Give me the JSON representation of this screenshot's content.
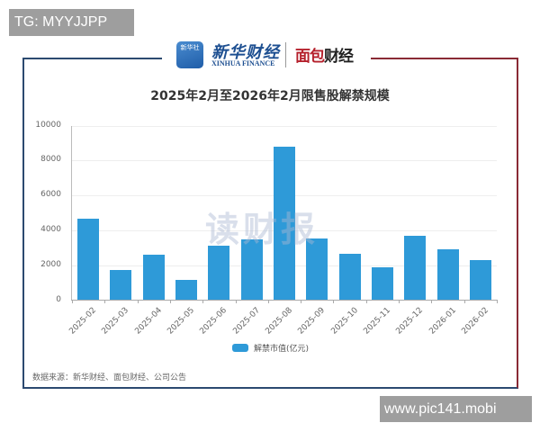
{
  "overlay": {
    "top_tag": "TG: MYYJJPP",
    "bottom_url": "www.pic141.mobi"
  },
  "branding": {
    "xinhua_icon_text": "新华社",
    "xinhua_name": "新华财经",
    "xinhua_sub": "XINHUA FINANCE",
    "mianbao_name_part1": "面包",
    "mianbao_name_part2": "财经",
    "watermark": "读财报"
  },
  "footer": {
    "source": "数据来源：新华财经、面包财经、公司公告"
  },
  "colors": {
    "bar": "#2e9ad8",
    "frame_left": "#2c4a70",
    "frame_right": "#8a2a35"
  },
  "chart_data": {
    "type": "bar",
    "title": "2025年2月至2026年2月限售股解禁规模",
    "xlabel": "",
    "ylabel": "",
    "categories": [
      "2025-02",
      "2025-03",
      "2025-04",
      "2025-05",
      "2025-06",
      "2025-07",
      "2025-08",
      "2025-09",
      "2025-10",
      "2025-11",
      "2025-12",
      "2026-01",
      "2026-02"
    ],
    "series": [
      {
        "name": "解禁市值(亿元)",
        "values": [
          4670,
          1750,
          2610,
          1180,
          3140,
          3480,
          8770,
          3530,
          2630,
          1870,
          3670,
          2920,
          2300
        ]
      }
    ],
    "yticks": [
      "0",
      "2000",
      "4000",
      "6000",
      "8000",
      "10000"
    ],
    "ylim": [
      0,
      10000
    ],
    "grid": true,
    "legend_position": "bottom"
  }
}
